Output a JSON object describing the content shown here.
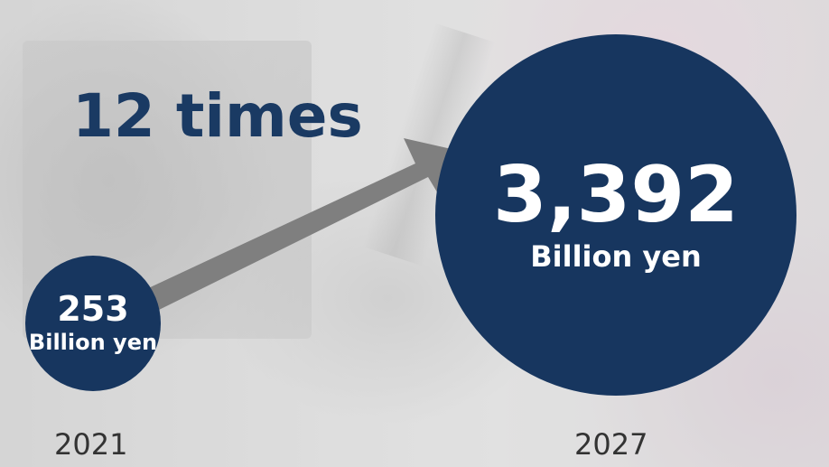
{
  "headline": "12 times",
  "start": {
    "value": "253",
    "unit": "Billion yen",
    "year": "2021"
  },
  "end": {
    "value": "3,392",
    "unit": "Billion yen",
    "year": "2027"
  },
  "colors": {
    "circle": "#17365f",
    "headline": "#1a3a63",
    "arrow": "#7f7f7f",
    "circle_text": "#ffffff",
    "year_text": "#333333"
  }
}
